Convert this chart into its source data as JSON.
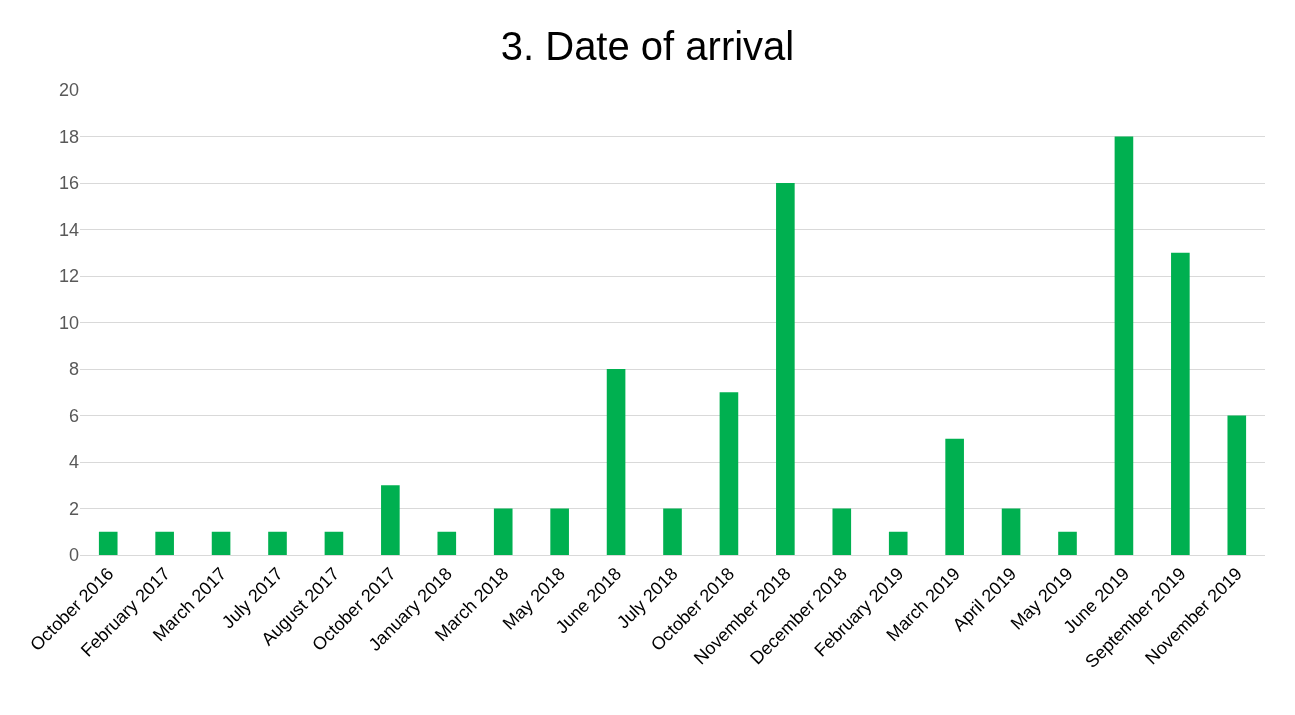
{
  "chart_data": {
    "type": "bar",
    "title": "3. Date of arrival",
    "categories": [
      "October 2016",
      "February 2017",
      "March 2017",
      "July 2017",
      "August 2017",
      "October 2017",
      "January 2018",
      "March 2018",
      "May 2018",
      "June 2018",
      "July 2018",
      "October 2018",
      "November 2018",
      "December 2018",
      "February 2019",
      "March 2019",
      "April 2019",
      "May 2019",
      "June 2019",
      "September 2019",
      "November 2019"
    ],
    "values": [
      1,
      1,
      1,
      1,
      1,
      3,
      1,
      2,
      2,
      8,
      2,
      7,
      16,
      2,
      1,
      5,
      2,
      1,
      18,
      13,
      6
    ],
    "color": "#00b050",
    "ylim": [
      0,
      20
    ],
    "yticks": [
      0,
      2,
      4,
      6,
      8,
      10,
      12,
      14,
      16,
      18,
      20
    ],
    "grid": "y",
    "legend": false
  }
}
